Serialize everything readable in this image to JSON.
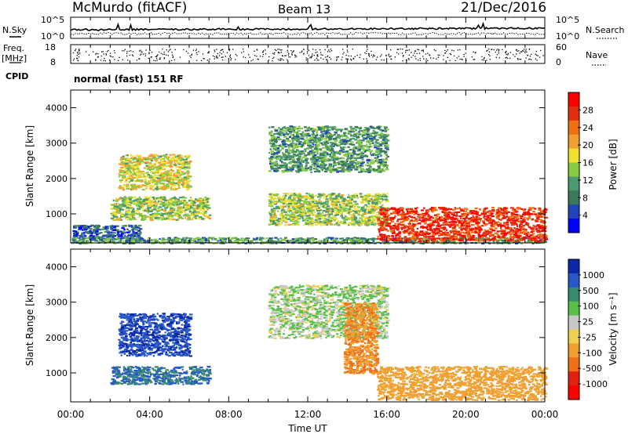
{
  "header": {
    "station": "McMurdo (fitACF)",
    "beam": "Beam 13",
    "date": "21/Dec/2016"
  },
  "noise_panel": {
    "left_label": "N.Sky",
    "right_label": "N.Search",
    "left_ticks": [
      "10^5",
      "10^0"
    ],
    "right_ticks": [
      "10^5",
      "10^0"
    ]
  },
  "freq_panel": {
    "left_label_1": "Freq.",
    "left_label_2": "[MHz]",
    "right_label": "Nave",
    "left_ticks": [
      "18",
      "8"
    ],
    "right_ticks": [
      "60",
      "0"
    ]
  },
  "cpid": {
    "label": "CPID",
    "value": "normal (fast) 151 RF"
  },
  "colors": {
    "power_scale": [
      "#0000ff",
      "#2244bb",
      "#3a7a5a",
      "#4c9a6e",
      "#88cc44",
      "#f0e030",
      "#f0a030",
      "#f07010",
      "#e03010",
      "#ff0000"
    ],
    "velocity_scale": [
      "#0a28a8",
      "#2858c8",
      "#3a8a70",
      "#58c048",
      "#c8c8c8",
      "#f0d050",
      "#f0a030",
      "#f07018",
      "#e02010",
      "#ff0000"
    ]
  },
  "chart_data": [
    {
      "type": "heatmap",
      "panel": "power",
      "ylabel": "Slant Range [km]",
      "yticks": [
        "4000",
        "3000",
        "2000",
        "1000"
      ],
      "ylim": [
        180,
        4500
      ],
      "xlim": [
        "00:00",
        "24:00"
      ],
      "colorbar": {
        "label": "Power [dB]",
        "ticks": [
          "28",
          "24",
          "20",
          "16",
          "12",
          "8",
          "4"
        ],
        "range": [
          0,
          30
        ]
      },
      "regions": [
        {
          "t": [
            2.4,
            6.0
          ],
          "r": [
            1700,
            2700
          ],
          "level": 16
        },
        {
          "t": [
            2.0,
            7.0
          ],
          "r": [
            850,
            1500
          ],
          "level": 14
        },
        {
          "t": [
            0.1,
            3.5
          ],
          "r": [
            300,
            700
          ],
          "level": 6
        },
        {
          "t": [
            0.0,
            24.0
          ],
          "r": [
            180,
            350
          ],
          "level": 10
        },
        {
          "t": [
            10.0,
            16.0
          ],
          "r": [
            700,
            1600
          ],
          "level": 14
        },
        {
          "t": [
            10.0,
            16.0
          ],
          "r": [
            2200,
            3500
          ],
          "level": 10
        },
        {
          "t": [
            15.5,
            24.0
          ],
          "r": [
            250,
            1200
          ],
          "level": 26
        }
      ]
    },
    {
      "type": "heatmap",
      "panel": "velocity",
      "ylabel": "Slant Range [km]",
      "yticks": [
        "4000",
        "3000",
        "2000",
        "1000"
      ],
      "ylim": [
        180,
        4500
      ],
      "xlim": [
        "00:00",
        "24:00"
      ],
      "xticks": [
        "00:00",
        "04:00",
        "08:00",
        "12:00",
        "16:00",
        "20:00",
        "00:00"
      ],
      "xlabel": "Time UT",
      "colorbar": {
        "label": "Velocity [m s⁻¹]",
        "ticks": [
          "1000",
          "500",
          "100",
          "25",
          "-25",
          "-100",
          "-500",
          "-1000"
        ],
        "range": [
          -1000,
          1000
        ]
      },
      "regions": [
        {
          "t": [
            2.4,
            6.0
          ],
          "r": [
            1500,
            2700
          ],
          "vel": 700
        },
        {
          "t": [
            2.0,
            7.0
          ],
          "r": [
            700,
            1200
          ],
          "vel": 300
        },
        {
          "t": [
            10.0,
            16.0
          ],
          "r": [
            2000,
            3500
          ],
          "vel": 10
        },
        {
          "t": [
            13.8,
            15.5
          ],
          "r": [
            1000,
            3000
          ],
          "vel": -300
        },
        {
          "t": [
            15.5,
            24.0
          ],
          "r": [
            250,
            1200
          ],
          "vel": -150
        }
      ]
    }
  ]
}
